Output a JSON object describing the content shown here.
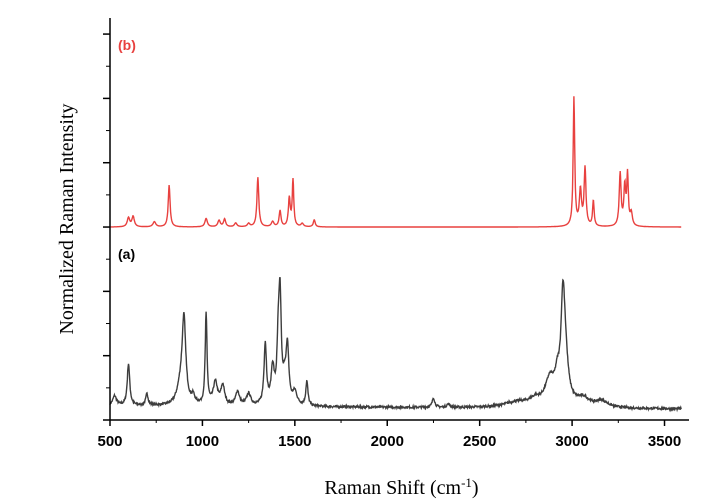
{
  "chart_data": {
    "type": "line",
    "xlabel": "Raman Shift (cm",
    "xlabel_sup": "-1",
    "xlabel_tail": ")",
    "ylabel": "Normalized Raman Intensity",
    "xlim": [
      500,
      3600
    ],
    "ylim": [
      0,
      6.25
    ],
    "x_ticks": [
      500,
      1000,
      1500,
      2000,
      2500,
      3000,
      3500
    ],
    "x_tick_labels": [
      "500",
      "1000",
      "1500",
      "2000",
      "2500",
      "3000",
      "3500"
    ],
    "y_tick_values": [
      0,
      1,
      2,
      3,
      4,
      5,
      6
    ],
    "y_tick_labels_shown": false,
    "grid": false,
    "series": [
      {
        "name": "(b)",
        "color": "#e8413f",
        "baseline": 3.0,
        "peaks": [
          [
            600,
            0.14,
            8
          ],
          [
            625,
            0.16,
            8
          ],
          [
            740,
            0.08,
            9
          ],
          [
            820,
            0.65,
            6
          ],
          [
            1020,
            0.13,
            8
          ],
          [
            1090,
            0.1,
            8
          ],
          [
            1120,
            0.12,
            7
          ],
          [
            1180,
            0.06,
            8
          ],
          [
            1250,
            0.05,
            8
          ],
          [
            1300,
            0.77,
            6
          ],
          [
            1380,
            0.08,
            8
          ],
          [
            1420,
            0.25,
            6
          ],
          [
            1470,
            0.44,
            6
          ],
          [
            1490,
            0.72,
            5
          ],
          [
            1540,
            0.05,
            8
          ],
          [
            1605,
            0.11,
            6
          ],
          [
            3010,
            2.0,
            5
          ],
          [
            3045,
            0.55,
            7
          ],
          [
            3070,
            0.9,
            6
          ],
          [
            3115,
            0.4,
            5
          ],
          [
            3260,
            0.82,
            6
          ],
          [
            3285,
            0.6,
            6
          ],
          [
            3300,
            0.78,
            5
          ],
          [
            3320,
            0.2,
            7
          ]
        ]
      },
      {
        "name": "(a)",
        "color": "#3d3d3d",
        "baseline": 0.22,
        "slope": -0.05,
        "peaks": [
          [
            525,
            0.15,
            12
          ],
          [
            600,
            0.65,
            8
          ],
          [
            700,
            0.18,
            8
          ],
          [
            880,
            0.25,
            22
          ],
          [
            900,
            1.3,
            12
          ],
          [
            950,
            0.12,
            10
          ],
          [
            1020,
            1.4,
            6
          ],
          [
            1070,
            0.35,
            14
          ],
          [
            1110,
            0.3,
            12
          ],
          [
            1190,
            0.22,
            12
          ],
          [
            1250,
            0.18,
            14
          ],
          [
            1340,
            0.95,
            8
          ],
          [
            1380,
            0.55,
            10
          ],
          [
            1410,
            0.8,
            8
          ],
          [
            1420,
            1.55,
            8
          ],
          [
            1445,
            0.3,
            10
          ],
          [
            1460,
            0.85,
            9
          ],
          [
            1500,
            0.2,
            14
          ],
          [
            1565,
            0.38,
            7
          ],
          [
            2250,
            0.15,
            8
          ],
          [
            2330,
            0.05,
            10
          ],
          [
            2700,
            0.08,
            80
          ],
          [
            2800,
            0.1,
            40
          ],
          [
            2880,
            0.4,
            30
          ],
          [
            2920,
            0.3,
            15
          ],
          [
            2950,
            1.2,
            12
          ],
          [
            2960,
            0.8,
            20
          ],
          [
            3060,
            0.13,
            40
          ],
          [
            3160,
            0.1,
            40
          ]
        ]
      }
    ],
    "annotations": [
      {
        "text": "(b)",
        "color": "#e8413f"
      },
      {
        "text": "(a)",
        "color": "#000000"
      }
    ]
  }
}
